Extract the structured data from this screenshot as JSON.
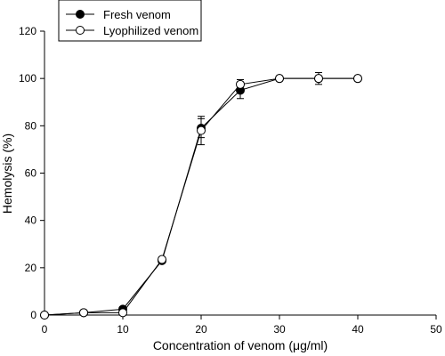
{
  "chart_data": {
    "type": "line",
    "xlabel": "Concentration of venom (μg/ml)",
    "ylabel": "Hemolysis (%)",
    "xlim": [
      0,
      50
    ],
    "ylim": [
      0,
      120
    ],
    "xticks": [
      0,
      10,
      20,
      30,
      40,
      50
    ],
    "yticks": [
      0,
      20,
      40,
      60,
      80,
      100,
      120
    ],
    "grid": false,
    "legend": "top-left",
    "x": [
      0,
      5,
      10,
      15,
      20,
      25,
      30,
      35,
      40
    ],
    "series": [
      {
        "name": "Fresh venom",
        "marker": "filled-circle",
        "values": [
          0,
          1,
          2.5,
          23,
          79,
          95,
          100,
          100,
          100
        ],
        "errors": [
          0,
          0.5,
          1,
          1,
          4,
          3.5,
          1,
          1,
          1
        ]
      },
      {
        "name": "Lyophilized venom",
        "marker": "open-circle",
        "values": [
          0,
          1,
          1,
          23.5,
          78,
          97.5,
          100,
          100,
          100
        ],
        "errors": [
          0,
          0.5,
          1,
          1,
          6,
          2,
          1,
          2.5,
          1
        ]
      }
    ]
  }
}
